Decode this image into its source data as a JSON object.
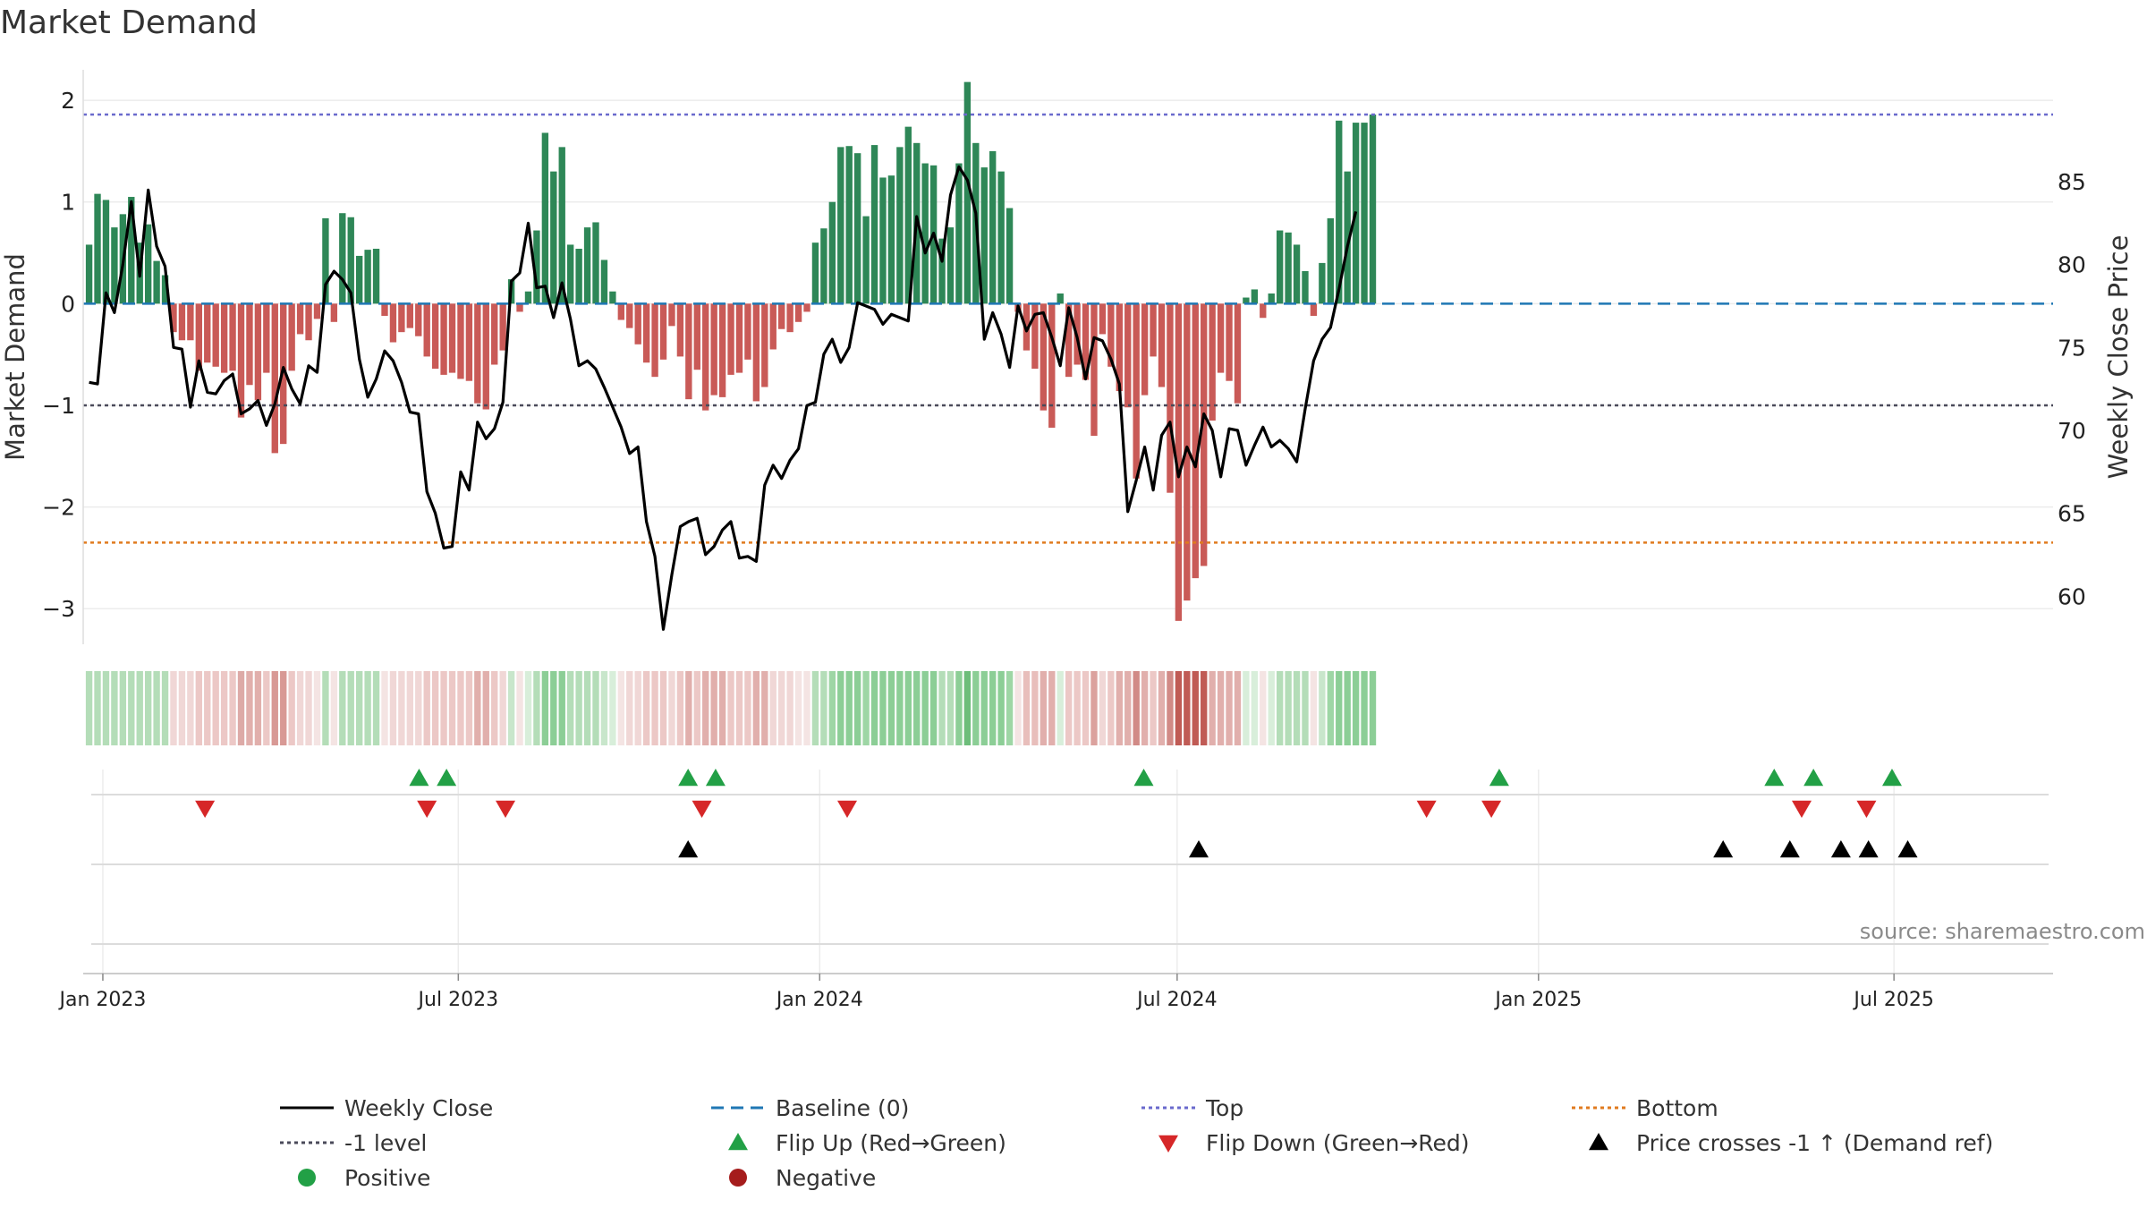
{
  "chart_data": {
    "type": "bar",
    "title": "Market Demand",
    "ylabel_left": "Market Demand",
    "ylabel_right": "Weekly Close Price",
    "ylim_left": [
      -3.35,
      2.3
    ],
    "ylim_right": [
      57.1,
      91.75
    ],
    "yticks_left": [
      2,
      1,
      0,
      -1,
      -2,
      -3
    ],
    "yticks_left_labels": [
      "2",
      "1",
      "0",
      "−1",
      "−2",
      "−3"
    ],
    "yticks_right": [
      85,
      80,
      75,
      70,
      65,
      60
    ],
    "yticks_right_labels": [
      "85",
      "80",
      "75",
      "70",
      "65",
      "60"
    ],
    "x_start": "2022-12-25",
    "x_interval_days": 4.3,
    "xlim_days": [
      -3,
      1000
    ],
    "x_ticks": [
      {
        "day": 7,
        "label": "Jan 2023"
      },
      {
        "day": 188,
        "label": "Jul 2023"
      },
      {
        "day": 372,
        "label": "Jan 2024"
      },
      {
        "day": 554,
        "label": "Jul 2024"
      },
      {
        "day": 738,
        "label": "Jan 2025"
      },
      {
        "day": 919,
        "label": "Jul 2025"
      }
    ],
    "reference_lines": {
      "top": 1.86,
      "minus_one": -1.0,
      "bottom": -2.35,
      "baseline": 0
    },
    "demand": [
      0.58,
      1.08,
      1.02,
      0.75,
      0.88,
      1.05,
      0.6,
      0.78,
      0.42,
      0.28,
      -0.28,
      -0.36,
      -0.36,
      -0.66,
      -0.58,
      -0.62,
      -0.68,
      -0.66,
      -1.12,
      -0.8,
      -0.95,
      -0.68,
      -1.47,
      -1.38,
      -0.66,
      -0.3,
      -0.36,
      -0.15,
      0.84,
      -0.18,
      0.89,
      0.85,
      0.47,
      0.53,
      0.54,
      -0.12,
      -0.38,
      -0.28,
      -0.24,
      -0.32,
      -0.52,
      -0.64,
      -0.7,
      -0.68,
      -0.74,
      -0.76,
      -0.98,
      -1.04,
      -0.6,
      -0.46,
      0.24,
      -0.08,
      0.12,
      0.72,
      1.68,
      1.3,
      1.54,
      0.58,
      0.54,
      0.75,
      0.8,
      0.43,
      0.12,
      -0.16,
      -0.24,
      -0.4,
      -0.58,
      -0.72,
      -0.55,
      -0.22,
      -0.52,
      -0.94,
      -0.65,
      -1.05,
      -0.9,
      -0.92,
      -0.7,
      -0.68,
      -0.55,
      -0.96,
      -0.82,
      -0.45,
      -0.25,
      -0.28,
      -0.18,
      -0.08,
      0.6,
      0.74,
      1.0,
      1.54,
      1.55,
      1.48,
      0.86,
      1.56,
      1.24,
      1.26,
      1.54,
      1.74,
      1.58,
      1.38,
      1.36,
      0.64,
      0.75,
      1.38,
      2.18,
      1.58,
      1.34,
      1.5,
      1.3,
      0.94,
      -0.08,
      -0.46,
      -0.64,
      -1.05,
      -1.22,
      0.1,
      -0.72,
      -0.6,
      -0.75,
      -1.3,
      -0.3,
      -0.62,
      -0.86,
      -1.02,
      -1.72,
      -0.9,
      -0.52,
      -0.82,
      -1.86,
      -3.12,
      -2.92,
      -2.7,
      -2.58,
      -1.15,
      -0.68,
      -0.76,
      -0.98,
      0.06,
      0.14,
      -0.14,
      0.1,
      0.72,
      0.7,
      0.58,
      0.32,
      -0.12,
      0.4,
      0.84,
      1.8,
      1.3,
      1.78,
      1.78,
      1.86
    ],
    "weekly_close": [
      72.9,
      72.8,
      78.3,
      77.1,
      80.0,
      83.8,
      79.3,
      84.5,
      81.1,
      79.9,
      75.0,
      74.9,
      71.4,
      74.2,
      72.3,
      72.2,
      73.0,
      73.4,
      71.0,
      71.3,
      71.8,
      70.3,
      71.6,
      73.8,
      72.5,
      71.6,
      73.9,
      73.5,
      78.8,
      79.6,
      79.1,
      78.3,
      74.3,
      72.0,
      73.1,
      74.8,
      74.2,
      72.9,
      71.1,
      71.0,
      66.3,
      65.0,
      62.9,
      63.0,
      67.5,
      66.4,
      70.5,
      69.5,
      70.1,
      71.7,
      79.0,
      79.5,
      82.5,
      78.6,
      78.7,
      76.8,
      78.9,
      76.7,
      73.9,
      74.2,
      73.7,
      72.6,
      71.4,
      70.2,
      68.6,
      69.0,
      64.5,
      62.4,
      58.0,
      61.3,
      64.2,
      64.5,
      64.7,
      62.5,
      63.0,
      64.0,
      64.5,
      62.3,
      62.4,
      62.1,
      66.7,
      67.9,
      67.1,
      68.2,
      68.9,
      71.5,
      71.7,
      74.6,
      75.5,
      74.1,
      75.0,
      77.7,
      77.5,
      77.3,
      76.4,
      77.0,
      76.8,
      76.6,
      82.9,
      80.7,
      81.9,
      80.2,
      84.2,
      85.9,
      85.1,
      83.1,
      75.5,
      77.1,
      75.8,
      73.8,
      77.5,
      76.0,
      77.0,
      77.1,
      75.6,
      73.9,
      77.4,
      75.6,
      73.1,
      75.6,
      75.4,
      74.3,
      72.8,
      65.1,
      67.0,
      69.0,
      66.4,
      69.7,
      70.5,
      67.2,
      69.0,
      67.8,
      71.0,
      70.0,
      67.2,
      70.1,
      70.0,
      67.9,
      69.1,
      70.2,
      69.0,
      69.4,
      68.9,
      68.1,
      71.3,
      74.2,
      75.5,
      76.2,
      78.5,
      81.1,
      83.2
    ],
    "flip_up_days": [
      168,
      182,
      305,
      319,
      537,
      718,
      858,
      878,
      918
    ],
    "flip_down_days": [
      59,
      172,
      212,
      312,
      386,
      681,
      714,
      872,
      905
    ],
    "price_crosses_days": [
      305,
      565,
      832,
      866,
      892,
      906,
      926
    ],
    "heat_strip_colors": [
      "#b4ddb8",
      "#b4ddb8",
      "#b4ddb8",
      "#b4ddb8",
      "#b4ddb8",
      "#b4ddb8",
      "#b4ddb8",
      "#b4ddb8",
      "#b4ddb8",
      "#b4ddb8",
      "#f0d7d6",
      "#f0d7d6",
      "#f0d7d6",
      "#ecc8c6",
      "#ecc8c6",
      "#ecc8c6",
      "#ecc8c6",
      "#ecc8c6",
      "#ddaaa7",
      "#e1afac",
      "#e1afac",
      "#ecc8c6",
      "#d89995",
      "#d89995",
      "#ecc8c6",
      "#f0d7d6",
      "#f0d7d6",
      "#f4e4e3",
      "#b4ddb8",
      "#f4e4e3",
      "#b4ddb8",
      "#b4ddb8",
      "#b4ddb8",
      "#b4ddb8",
      "#b4ddb8",
      "#f4e4e3",
      "#f0d7d6",
      "#f0d7d6",
      "#f0d7d6",
      "#f0d7d6",
      "#ecc8c6",
      "#ecc8c6",
      "#ecc8c6",
      "#ecc8c6",
      "#ecc8c6",
      "#ecc8c6",
      "#e1afac",
      "#e1afac",
      "#ecc8c6",
      "#f0d7d6",
      "#c8e6cb",
      "#f4e4e3",
      "#d8eeda",
      "#b4ddb8",
      "#8cce96",
      "#8cce96",
      "#8cce96",
      "#b4ddb8",
      "#b4ddb8",
      "#b4ddb8",
      "#b4ddb8",
      "#c8e6cb",
      "#d8eeda",
      "#f4e4e3",
      "#f0d7d6",
      "#f0d7d6",
      "#ecc8c6",
      "#ecc8c6",
      "#ecc8c6",
      "#f0d7d6",
      "#ecc8c6",
      "#e1afac",
      "#ecc8c6",
      "#e1afac",
      "#e1afac",
      "#e1afac",
      "#ecc8c6",
      "#ecc8c6",
      "#ecc8c6",
      "#e1afac",
      "#e1afac",
      "#f0d7d6",
      "#f0d7d6",
      "#f0d7d6",
      "#f4e4e3",
      "#f4e4e3",
      "#b4ddb8",
      "#b4ddb8",
      "#9ed6a5",
      "#8cce96",
      "#8cce96",
      "#8cce96",
      "#9ed6a5",
      "#8cce96",
      "#8cce96",
      "#8cce96",
      "#8cce96",
      "#8cce96",
      "#8cce96",
      "#8cce96",
      "#8cce96",
      "#b4ddb8",
      "#b4ddb8",
      "#8cce96",
      "#6dbd7a",
      "#8cce96",
      "#8cce96",
      "#8cce96",
      "#8cce96",
      "#9ed6a5",
      "#f4e4e3",
      "#e8bebb",
      "#e8bebb",
      "#e1afac",
      "#e1afac",
      "#d8eeda",
      "#ecc8c6",
      "#ecc8c6",
      "#ecc8c6",
      "#dba29e",
      "#f0d7d6",
      "#ecc8c6",
      "#e1afac",
      "#e1afac",
      "#d18a86",
      "#e1afac",
      "#ecc8c6",
      "#e1afac",
      "#d18a86",
      "#c05b55",
      "#c05b55",
      "#c05b55",
      "#c05b55",
      "#e1afac",
      "#e1afac",
      "#e1afac",
      "#e1afac",
      "#d8eeda",
      "#d8eeda",
      "#f4e4e3",
      "#d8eeda",
      "#b4ddb8",
      "#b4ddb8",
      "#b4ddb8",
      "#b4ddb8",
      "#f4e4e3",
      "#c8e6cb",
      "#9ed6a5",
      "#8cce96",
      "#8cce96",
      "#8cce96",
      "#8cce96",
      "#8cce96"
    ],
    "colors": {
      "positive_bar": "#2e8757",
      "negative_bar": "#c95a57",
      "weekly_close": "#000000",
      "baseline": "#1f77b4",
      "top": "#6a6acd",
      "minus_one": "#4a4a5a",
      "bottom": "#e07b1f",
      "flip_up": "#22a046",
      "flip_down": "#d62728",
      "price_cross": "#000000",
      "positive_dot": "#22a046",
      "negative_dot": "#a51c1c"
    },
    "source": "source: sharemaestro.com",
    "legend": [
      {
        "label": "Weekly Close",
        "kind": "line",
        "color": "#000000",
        "dash": ""
      },
      {
        "label": "Baseline (0)",
        "kind": "line",
        "color": "#1f77b4",
        "dash": "14,8"
      },
      {
        "label": "Top",
        "kind": "line",
        "color": "#6a6acd",
        "dash": "4,4"
      },
      {
        "label": "Bottom",
        "kind": "line",
        "color": "#e07b1f",
        "dash": "4,4"
      },
      {
        "label": "-1 level",
        "kind": "line",
        "color": "#4a4a5a",
        "dash": "4,4"
      },
      {
        "label": "Flip Up (Red→Green)",
        "kind": "tri-up",
        "color": "#22a046"
      },
      {
        "label": "Flip Down (Green→Red)",
        "kind": "tri-down",
        "color": "#d62728"
      },
      {
        "label": "Price crosses -1 ↑ (Demand ref)",
        "kind": "tri-up",
        "color": "#000000"
      },
      {
        "label": "Positive",
        "kind": "dot",
        "color": "#22a046"
      },
      {
        "label": "Negative",
        "kind": "dot",
        "color": "#a51c1c"
      }
    ]
  }
}
